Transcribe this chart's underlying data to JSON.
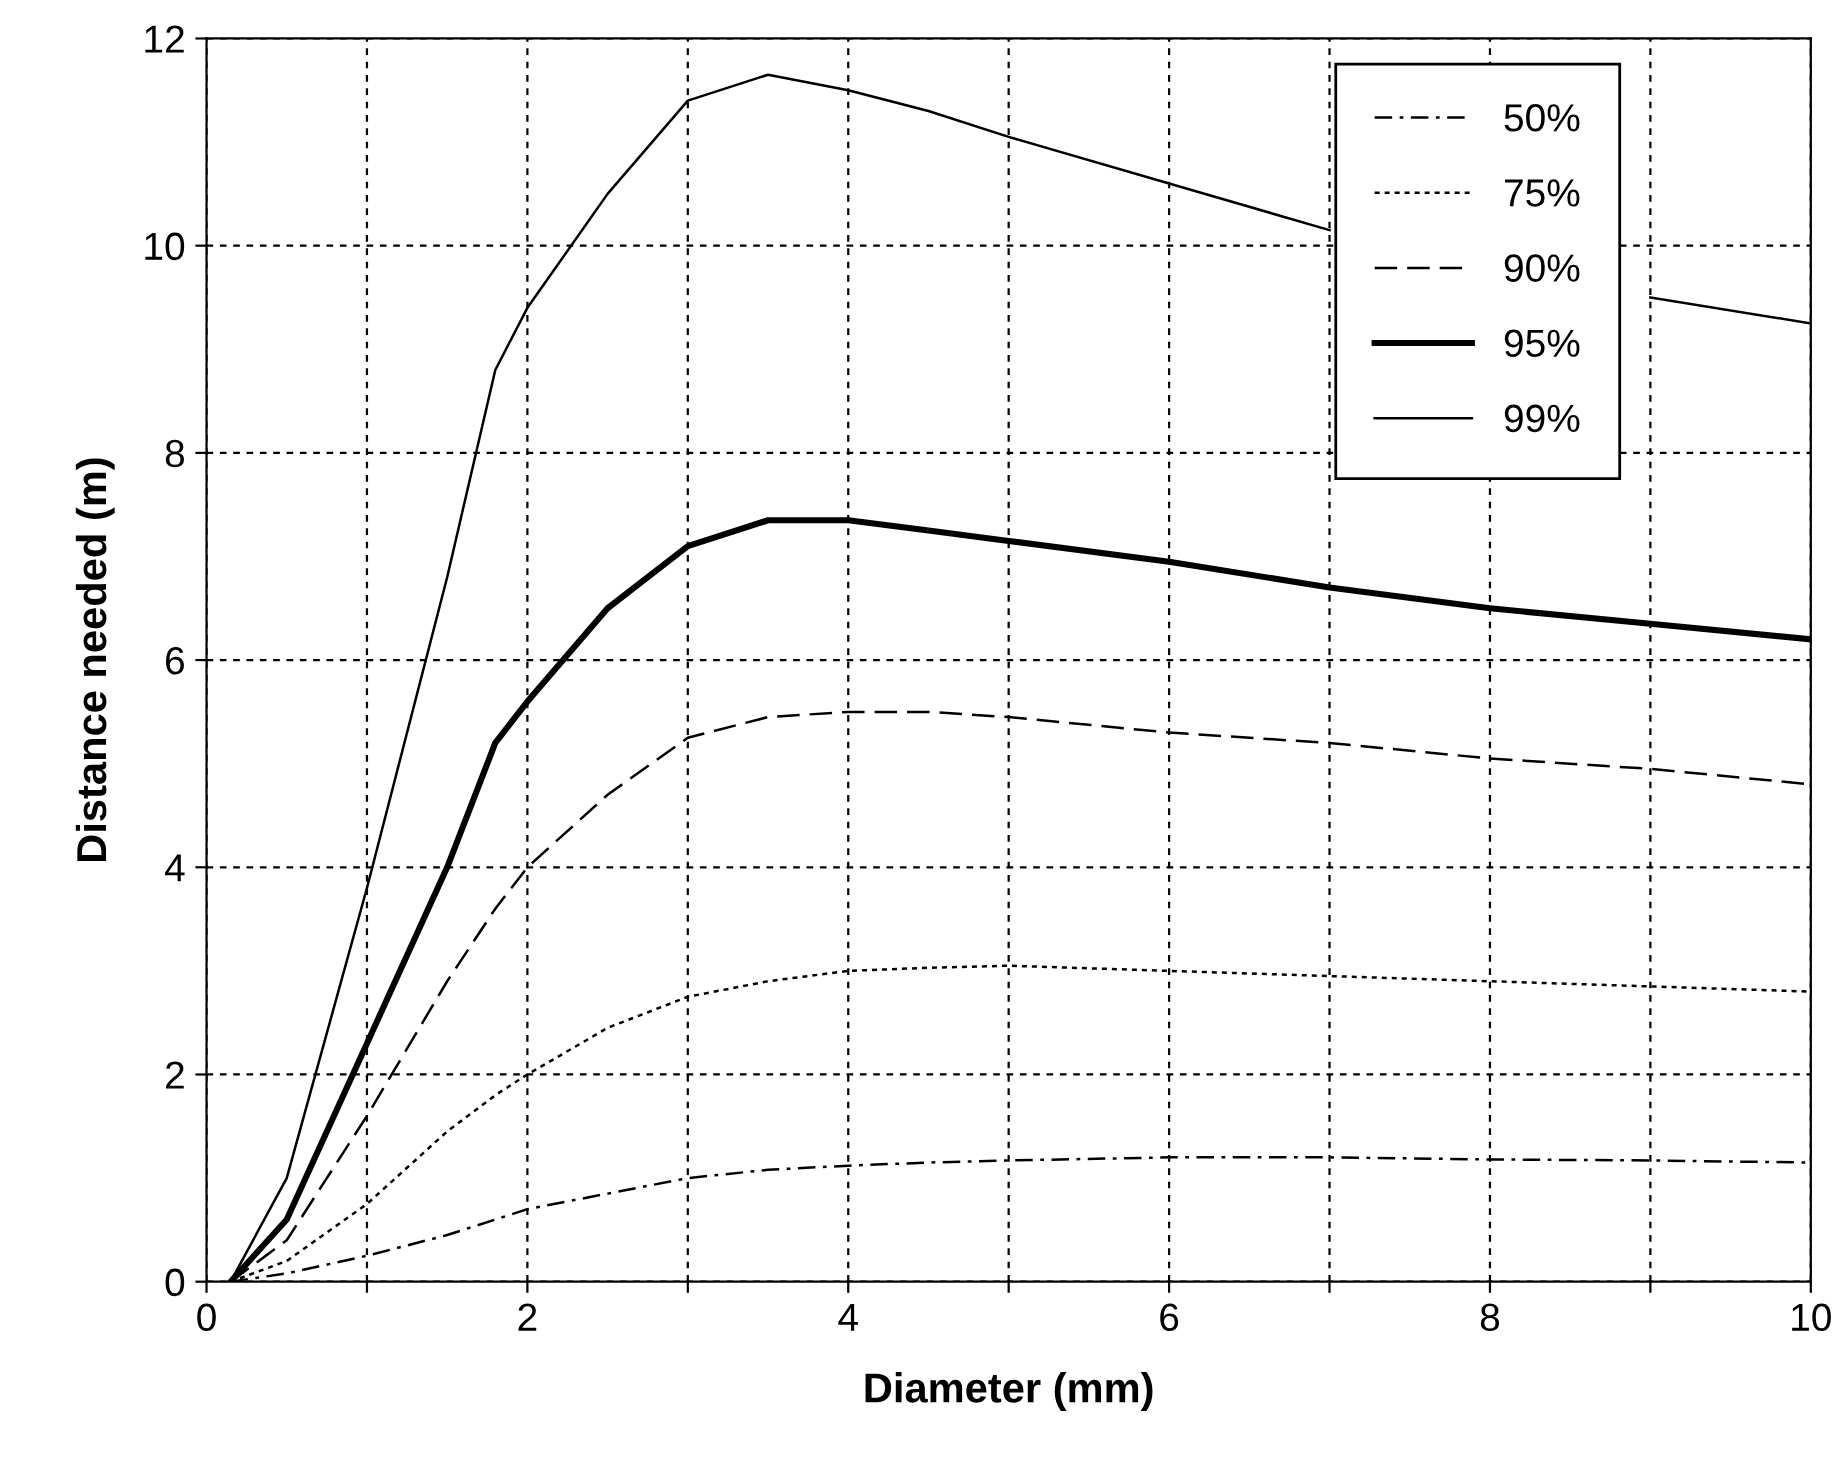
{
  "chart_data": {
    "type": "line",
    "xlabel": "Diameter (mm)",
    "ylabel": "Distance needed (m)",
    "x": [
      0.15,
      0.5,
      1,
      1.5,
      1.8,
      2,
      2.5,
      3,
      3.5,
      4,
      4.5,
      5,
      6,
      7,
      8,
      9,
      10
    ],
    "series": [
      {
        "name": "50%",
        "color": "#000000",
        "line_style": "dashdot",
        "values": [
          0,
          0.08,
          0.25,
          0.45,
          0.6,
          0.7,
          0.85,
          1.0,
          1.08,
          1.12,
          1.15,
          1.17,
          1.2,
          1.2,
          1.18,
          1.17,
          1.15
        ]
      },
      {
        "name": "75%",
        "color": "#000000",
        "line_style": "dotted",
        "values": [
          0,
          0.2,
          0.75,
          1.45,
          1.8,
          2.0,
          2.45,
          2.75,
          2.9,
          3.0,
          3.03,
          3.05,
          3.0,
          2.95,
          2.9,
          2.85,
          2.8
        ]
      },
      {
        "name": "90%",
        "color": "#000000",
        "line_style": "dashed",
        "values": [
          0,
          0.4,
          1.6,
          2.9,
          3.6,
          4.0,
          4.7,
          5.25,
          5.45,
          5.5,
          5.5,
          5.45,
          5.3,
          5.2,
          5.05,
          4.95,
          4.8
        ]
      },
      {
        "name": "95%",
        "color": "#000000",
        "line_style": "solid",
        "values": [
          0,
          0.6,
          2.3,
          4.0,
          5.2,
          5.6,
          6.5,
          7.1,
          7.35,
          7.35,
          7.25,
          7.15,
          6.95,
          6.7,
          6.5,
          6.35,
          6.2
        ]
      },
      {
        "name": "99%",
        "color": "#000000",
        "line_style": "solid",
        "values": [
          0,
          1.0,
          3.8,
          6.8,
          8.8,
          9.4,
          10.5,
          11.4,
          11.65,
          11.5,
          11.3,
          11.05,
          10.6,
          10.15,
          null,
          9.5,
          9.25
        ]
      }
    ],
    "xlim": [
      0,
      10
    ],
    "ylim": [
      0,
      12
    ],
    "xticks": [
      0,
      {
        "value": 1,
        "label": null
      },
      2,
      {
        "value": 3,
        "label": null
      },
      4,
      {
        "value": 5,
        "label": null
      },
      6,
      {
        "value": 7,
        "label": null
      },
      8,
      {
        "value": 9,
        "label": null
      },
      10
    ],
    "yticks": [
      0,
      2,
      4,
      6,
      8,
      10,
      12
    ],
    "grid": true,
    "legend": "top right",
    "marker": "none"
  }
}
